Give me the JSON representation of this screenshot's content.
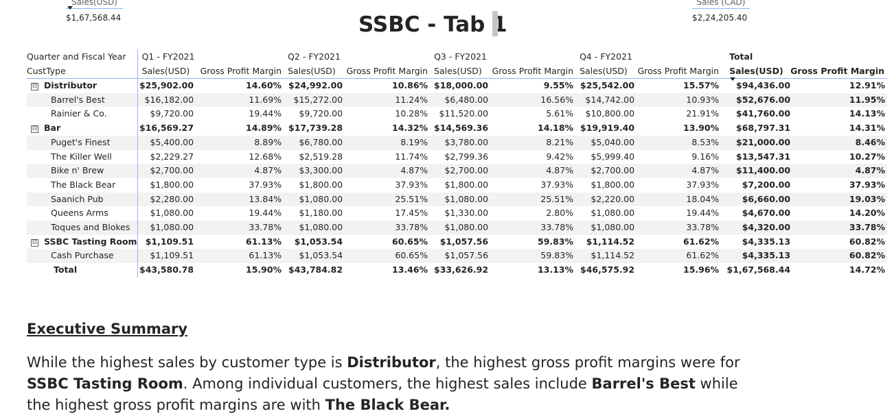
{
  "title": "SSBC - Tab 1",
  "cards": {
    "usd": {
      "label": "Sales(USD)",
      "value": "$1,67,568.44"
    },
    "cad": {
      "label": "Sales (CAD)",
      "value": "$2,24,205.40"
    }
  },
  "matrix": {
    "row_header_top": "Quarter and Fiscal Year",
    "row_header": "CustType",
    "quarters": [
      "Q1 - FY2021",
      "Q2 - FY2021",
      "Q3 - FY2021",
      "Q4 - FY2021",
      "Total"
    ],
    "measures": [
      "Sales(USD)",
      "Gross Profit Margin"
    ],
    "rows": [
      {
        "label": "Distributor",
        "level": "group",
        "expand": "⊟",
        "cells": [
          "$25,902.00",
          "14.60%",
          "$24,992.00",
          "10.86%",
          "$18,000.00",
          "9.55%",
          "$25,542.00",
          "15.57%",
          "$94,436.00",
          "12.91%"
        ]
      },
      {
        "label": "Barrel's Best",
        "level": "child",
        "cells": [
          "$16,182.00",
          "11.69%",
          "$15,272.00",
          "11.24%",
          "$6,480.00",
          "16.56%",
          "$14,742.00",
          "10.93%",
          "$52,676.00",
          "11.95%"
        ]
      },
      {
        "label": "Rainier & Co.",
        "level": "child",
        "cells": [
          "$9,720.00",
          "19.44%",
          "$9,720.00",
          "10.28%",
          "$11,520.00",
          "5.61%",
          "$10,800.00",
          "21.91%",
          "$41,760.00",
          "14.13%"
        ]
      },
      {
        "label": "Bar",
        "level": "group",
        "expand": "⊟",
        "cells": [
          "$16,569.27",
          "14.89%",
          "$17,739.28",
          "14.32%",
          "$14,569.36",
          "14.18%",
          "$19,919.40",
          "13.90%",
          "$68,797.31",
          "14.31%"
        ]
      },
      {
        "label": "Puget's Finest",
        "level": "child",
        "cells": [
          "$5,400.00",
          "8.89%",
          "$6,780.00",
          "8.19%",
          "$3,780.00",
          "8.21%",
          "$5,040.00",
          "8.53%",
          "$21,000.00",
          "8.46%"
        ]
      },
      {
        "label": "The Killer Well",
        "level": "child",
        "cells": [
          "$2,229.27",
          "12.68%",
          "$2,519.28",
          "11.74%",
          "$2,799.36",
          "9.42%",
          "$5,999.40",
          "9.16%",
          "$13,547.31",
          "10.27%"
        ]
      },
      {
        "label": "Bike n' Brew",
        "level": "child",
        "cells": [
          "$2,700.00",
          "4.87%",
          "$3,300.00",
          "4.87%",
          "$2,700.00",
          "4.87%",
          "$2,700.00",
          "4.87%",
          "$11,400.00",
          "4.87%"
        ]
      },
      {
        "label": "The Black Bear",
        "level": "child",
        "cells": [
          "$1,800.00",
          "37.93%",
          "$1,800.00",
          "37.93%",
          "$1,800.00",
          "37.93%",
          "$1,800.00",
          "37.93%",
          "$7,200.00",
          "37.93%"
        ]
      },
      {
        "label": "Saanich Pub",
        "level": "child",
        "cells": [
          "$2,280.00",
          "13.84%",
          "$1,080.00",
          "25.51%",
          "$1,080.00",
          "25.51%",
          "$2,220.00",
          "18.04%",
          "$6,660.00",
          "19.03%"
        ]
      },
      {
        "label": "Queens Arms",
        "level": "child",
        "cells": [
          "$1,080.00",
          "19.44%",
          "$1,180.00",
          "17.45%",
          "$1,330.00",
          "2.80%",
          "$1,080.00",
          "19.44%",
          "$4,670.00",
          "14.20%"
        ]
      },
      {
        "label": "Toques and Blokes",
        "level": "child",
        "cells": [
          "$1,080.00",
          "33.78%",
          "$1,080.00",
          "33.78%",
          "$1,080.00",
          "33.78%",
          "$1,080.00",
          "33.78%",
          "$4,320.00",
          "33.78%"
        ]
      },
      {
        "label": "SSBC Tasting Room",
        "level": "group",
        "expand": "⊟",
        "cells": [
          "$1,109.51",
          "61.13%",
          "$1,053.54",
          "60.65%",
          "$1,057.56",
          "59.83%",
          "$1,114.52",
          "61.62%",
          "$4,335.13",
          "60.82%"
        ]
      },
      {
        "label": "Cash Purchase",
        "level": "child",
        "cells": [
          "$1,109.51",
          "61.13%",
          "$1,053.54",
          "60.65%",
          "$1,057.56",
          "59.83%",
          "$1,114.52",
          "61.62%",
          "$4,335.13",
          "60.82%"
        ]
      },
      {
        "label": "Total",
        "level": "total",
        "cells": [
          "$43,580.78",
          "15.90%",
          "$43,784.82",
          "13.46%",
          "$33,626.92",
          "13.13%",
          "$46,575.92",
          "15.96%",
          "$1,67,568.44",
          "14.72%"
        ]
      }
    ]
  },
  "summary": {
    "heading": "Executive Summary",
    "parts": [
      {
        "t": "While the highest sales by customer type is ",
        "b": false
      },
      {
        "t": "Distributor",
        "b": true
      },
      {
        "t": ", the highest gross profit margins were for ",
        "b": false
      },
      {
        "t": "SSBC Tasting Room",
        "b": true
      },
      {
        "t": ". Among individual customers, the highest sales include ",
        "b": false
      },
      {
        "t": "Barrel's Best",
        "b": true
      },
      {
        "t": " while the highest gross profit margins are with ",
        "b": false
      },
      {
        "t": "The Black Bear.",
        "b": true
      }
    ]
  }
}
